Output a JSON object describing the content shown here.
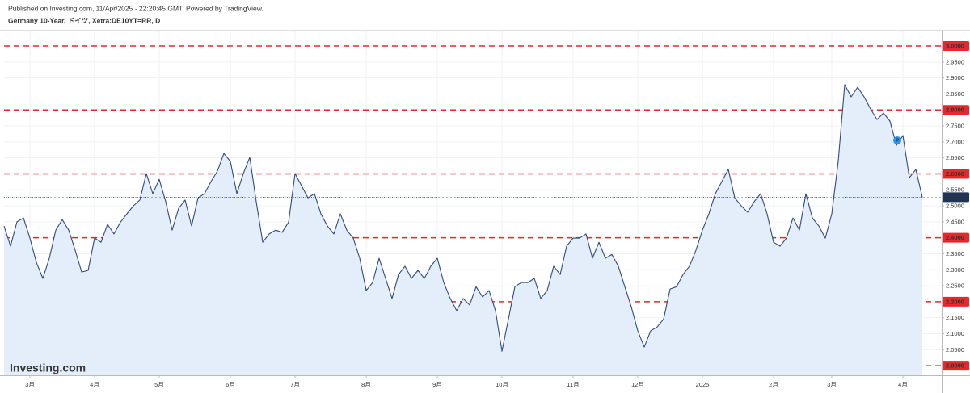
{
  "chart_data": {
    "type": "line",
    "subtitle": "Published on Investing.com, 11/Apr/2025 - 22:20:45 GMT, Powered by TradingView.",
    "title": "Germany 10-Year, ドイツ, Xetra:DE10YT=RR, D",
    "logo": "Investing.com",
    "annotation": "P",
    "categories": [
      null,
      null,
      null,
      null,
      "3月",
      null,
      null,
      null,
      null,
      null,
      null,
      null,
      null,
      null,
      "4月",
      null,
      null,
      null,
      null,
      null,
      null,
      null,
      null,
      null,
      "5月",
      null,
      null,
      null,
      null,
      null,
      null,
      null,
      null,
      null,
      null,
      "6月",
      null,
      null,
      null,
      null,
      null,
      null,
      null,
      null,
      null,
      "7月",
      null,
      null,
      null,
      null,
      null,
      null,
      null,
      null,
      null,
      null,
      "8月",
      null,
      null,
      null,
      null,
      null,
      null,
      null,
      null,
      null,
      null,
      "9月",
      null,
      null,
      null,
      null,
      null,
      null,
      null,
      null,
      null,
      "10月",
      null,
      null,
      null,
      null,
      null,
      null,
      null,
      null,
      null,
      null,
      "11月",
      null,
      null,
      null,
      null,
      null,
      null,
      null,
      null,
      null,
      "12月",
      null,
      null,
      null,
      null,
      null,
      null,
      null,
      null,
      null,
      "2025",
      null,
      null,
      null,
      null,
      null,
      null,
      null,
      null,
      null,
      null,
      "2月",
      null,
      null,
      null,
      null,
      null,
      null,
      null,
      null,
      "3月",
      null,
      null,
      null,
      null,
      null,
      null,
      null,
      null,
      null,
      null,
      "4月",
      null,
      null,
      null
    ],
    "values": [
      2.437,
      2.374,
      2.45,
      2.462,
      2.399,
      2.323,
      2.273,
      2.336,
      2.424,
      2.457,
      2.424,
      2.361,
      2.293,
      2.298,
      2.399,
      2.386,
      2.442,
      2.412,
      2.449,
      2.475,
      2.5,
      2.518,
      2.601,
      2.538,
      2.583,
      2.513,
      2.424,
      2.492,
      2.518,
      2.437,
      2.525,
      2.538,
      2.576,
      2.609,
      2.664,
      2.639,
      2.538,
      2.601,
      2.652,
      2.513,
      2.386,
      2.412,
      2.424,
      2.417,
      2.449,
      2.601,
      2.563,
      2.525,
      2.538,
      2.475,
      2.437,
      2.412,
      2.475,
      2.424,
      2.399,
      2.336,
      2.235,
      2.26,
      2.336,
      2.273,
      2.21,
      2.285,
      2.311,
      2.273,
      2.298,
      2.273,
      2.311,
      2.336,
      2.26,
      2.21,
      2.172,
      2.21,
      2.19,
      2.247,
      2.215,
      2.235,
      2.172,
      2.045,
      2.146,
      2.247,
      2.26,
      2.26,
      2.273,
      2.21,
      2.235,
      2.311,
      2.285,
      2.374,
      2.399,
      2.399,
      2.412,
      2.336,
      2.386,
      2.336,
      2.348,
      2.311,
      2.247,
      2.184,
      2.109,
      2.058,
      2.109,
      2.121,
      2.146,
      2.24,
      2.247,
      2.285,
      2.311,
      2.361,
      2.424,
      2.475,
      2.538,
      2.576,
      2.614,
      2.525,
      2.5,
      2.48,
      2.513,
      2.538,
      2.475,
      2.386,
      2.374,
      2.399,
      2.462,
      2.424,
      2.538,
      2.462,
      2.437,
      2.399,
      2.475,
      2.639,
      2.879,
      2.841,
      2.871,
      2.841,
      2.803,
      2.77,
      2.79,
      2.765,
      2.689,
      2.72,
      2.588,
      2.614,
      2.527
    ],
    "color": "#2f4b7c",
    "fill": "#e4eefa",
    "ylim": [
      1.97,
      3.048
    ],
    "yticks": [
      {
        "value": 2.0,
        "label": "2.0000"
      },
      {
        "value": 2.05,
        "label": "2.0500"
      },
      {
        "value": 2.1,
        "label": "2.1000"
      },
      {
        "value": 2.15,
        "label": "2.1500"
      },
      {
        "value": 2.2,
        "label": "2.2000"
      },
      {
        "value": 2.25,
        "label": "2.2500"
      },
      {
        "value": 2.3,
        "label": "2.3000"
      },
      {
        "value": 2.35,
        "label": "2.3500"
      },
      {
        "value": 2.4,
        "label": "2.4000"
      },
      {
        "value": 2.45,
        "label": "2.4500"
      },
      {
        "value": 2.5,
        "label": "2.5000"
      },
      {
        "value": 2.55,
        "label": "2.5500"
      },
      {
        "value": 2.6,
        "label": "2.6000"
      },
      {
        "value": 2.65,
        "label": "2.6500"
      },
      {
        "value": 2.7,
        "label": "2.7000"
      },
      {
        "value": 2.75,
        "label": "2.7500"
      },
      {
        "value": 2.8,
        "label": "2.8000"
      },
      {
        "value": 2.85,
        "label": "2.8500"
      },
      {
        "value": 2.9,
        "label": "2.9000"
      },
      {
        "value": 2.95,
        "label": "2.9500"
      },
      {
        "value": 3.0,
        "label": "3.0000"
      }
    ],
    "levels": [
      3.0,
      2.8,
      2.6,
      2.4,
      2.2,
      2.0
    ],
    "level_color": "#e8262b",
    "last": {
      "value": 2.527,
      "label": "2.5270"
    },
    "last_color": "#1c3557",
    "grid": true
  }
}
